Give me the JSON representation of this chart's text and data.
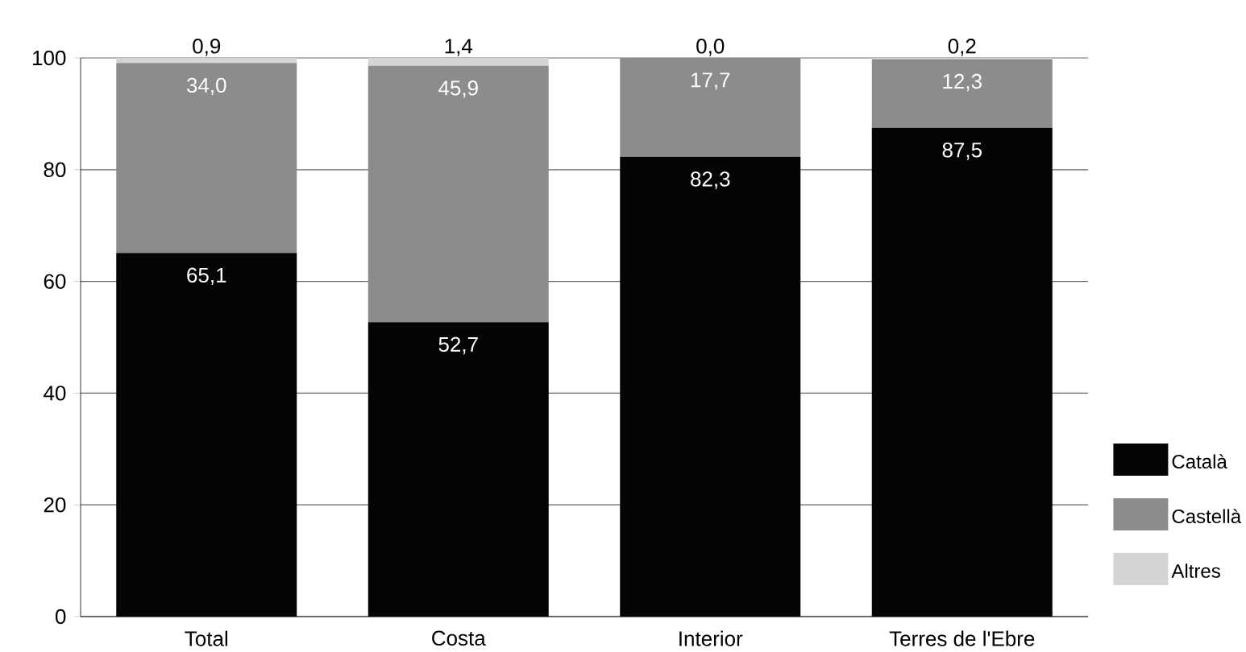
{
  "chart_data": {
    "type": "bar",
    "stacked": true,
    "categories": [
      "Total",
      "Costa",
      "Interior",
      "Terres de l'Ebre"
    ],
    "series": [
      {
        "name": "Català",
        "color": "#050505",
        "values": [
          65.1,
          52.7,
          82.3,
          87.5
        ],
        "value_labels": [
          "65,1",
          "52,7",
          "82,3",
          "87,5"
        ]
      },
      {
        "name": "Castellà",
        "color": "#8c8c8c",
        "values": [
          34.0,
          45.9,
          17.7,
          12.3
        ],
        "value_labels": [
          "34,0",
          "45,9",
          "17,7",
          "12,3"
        ]
      },
      {
        "name": "Altres",
        "color": "#d4d4d4",
        "values": [
          0.9,
          1.4,
          0.0,
          0.2
        ],
        "value_labels": [
          "0,9",
          "1,4",
          "0,0",
          "0,2"
        ]
      }
    ],
    "ylim": [
      0,
      100
    ],
    "yticks": [
      0,
      20,
      40,
      60,
      80,
      100
    ],
    "grid": "y",
    "legend": "right"
  }
}
